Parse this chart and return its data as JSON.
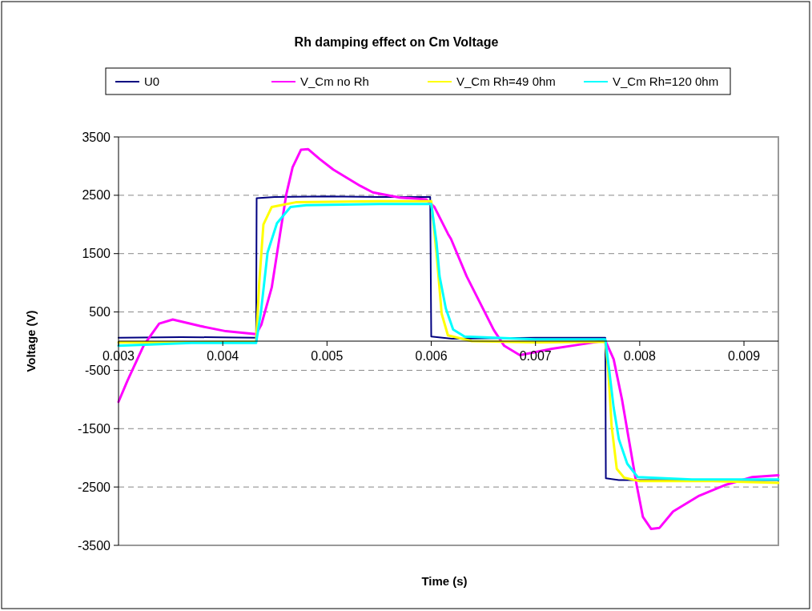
{
  "chart_data": {
    "type": "line",
    "title": "Rh damping effect on Cm Voltage",
    "xlabel": "Time (s)",
    "ylabel": "Voltage (V)",
    "xlim": [
      0.003,
      0.00933
    ],
    "xticks": [
      0.003,
      0.004,
      0.005,
      0.006,
      0.007,
      0.008,
      0.009
    ],
    "ylim": [
      -3500,
      3500
    ],
    "yticks": [
      -3500,
      -2500,
      -1500,
      -500,
      500,
      1500,
      2500,
      3500
    ],
    "grid": "y",
    "legend": "top",
    "line_style": "solid",
    "marker": "none",
    "series": [
      {
        "name": "U0",
        "color": "#000080",
        "x": [
          0.003,
          0.0036,
          0.00432,
          0.004325,
          0.0045,
          0.005,
          0.0055,
          0.00599,
          0.006,
          0.0062,
          0.007,
          0.00767,
          0.007675,
          0.0078,
          0.00933
        ],
        "values": [
          60,
          70,
          60,
          2450,
          2470,
          2480,
          2470,
          2470,
          80,
          40,
          60,
          60,
          -2350,
          -2380,
          -2380
        ]
      },
      {
        "name": "V_Cm no Rh",
        "color": "#ff00ff",
        "x": [
          0.003,
          0.003085,
          0.00324,
          0.00329,
          0.00339,
          0.00352,
          0.00378,
          0.00403,
          0.00432,
          0.00437,
          0.00447,
          0.00455,
          0.00461,
          0.00467,
          0.00475,
          0.00482,
          0.00493,
          0.00506,
          0.00519,
          0.00532,
          0.00544,
          0.0057,
          0.00595,
          0.00603,
          0.00616,
          0.00619,
          0.00634,
          0.00647,
          0.0066,
          0.0067,
          0.00685,
          0.00716,
          0.00742,
          0.00767,
          0.00775,
          0.00783,
          0.0079,
          0.00797,
          0.00803,
          0.00811,
          0.00819,
          0.00832,
          0.00857,
          0.00883,
          0.00908,
          0.00933
        ],
        "values": [
          -1040,
          -680,
          -80,
          50,
          300,
          370,
          260,
          170,
          120,
          280,
          920,
          1840,
          2520,
          2980,
          3280,
          3290,
          3120,
          2940,
          2800,
          2660,
          2550,
          2460,
          2430,
          2300,
          1840,
          1750,
          1110,
          650,
          190,
          -80,
          -240,
          -130,
          -60,
          10,
          -310,
          -1000,
          -1730,
          -2460,
          -3010,
          -3220,
          -3200,
          -2920,
          -2650,
          -2460,
          -2330,
          -2300
        ]
      },
      {
        "name": "V_Cm Rh=49 0hm",
        "color": "#ffff00",
        "x": [
          0.003,
          0.0037,
          0.00432,
          0.00435,
          0.00439,
          0.00447,
          0.0047,
          0.0055,
          0.006,
          0.00605,
          0.0061,
          0.00616,
          0.00639,
          0.007,
          0.00767,
          0.0077,
          0.00773,
          0.00778,
          0.00785,
          0.008,
          0.0087,
          0.00933
        ],
        "values": [
          -20,
          -20,
          -10,
          1000,
          2000,
          2300,
          2380,
          2400,
          2400,
          1520,
          470,
          100,
          0,
          -20,
          -10,
          -540,
          -1450,
          -2190,
          -2340,
          -2400,
          -2400,
          -2430
        ]
      },
      {
        "name": "V_Cm Rh=120 0hm",
        "color": "#00ffff",
        "x": [
          0.003,
          0.0037,
          0.00432,
          0.004367,
          0.00443,
          0.00452,
          0.00465,
          0.0048,
          0.0055,
          0.006,
          0.00605,
          0.00608,
          0.00614,
          0.00621,
          0.00632,
          0.007,
          0.00767,
          0.00771,
          0.00775,
          0.0078,
          0.00788,
          0.00798,
          0.0085,
          0.00933
        ],
        "values": [
          -80,
          -30,
          -30,
          510,
          1520,
          2020,
          2300,
          2330,
          2350,
          2350,
          1700,
          1110,
          560,
          200,
          80,
          30,
          30,
          -540,
          -1140,
          -1680,
          -2100,
          -2330,
          -2370,
          -2370
        ]
      }
    ]
  }
}
